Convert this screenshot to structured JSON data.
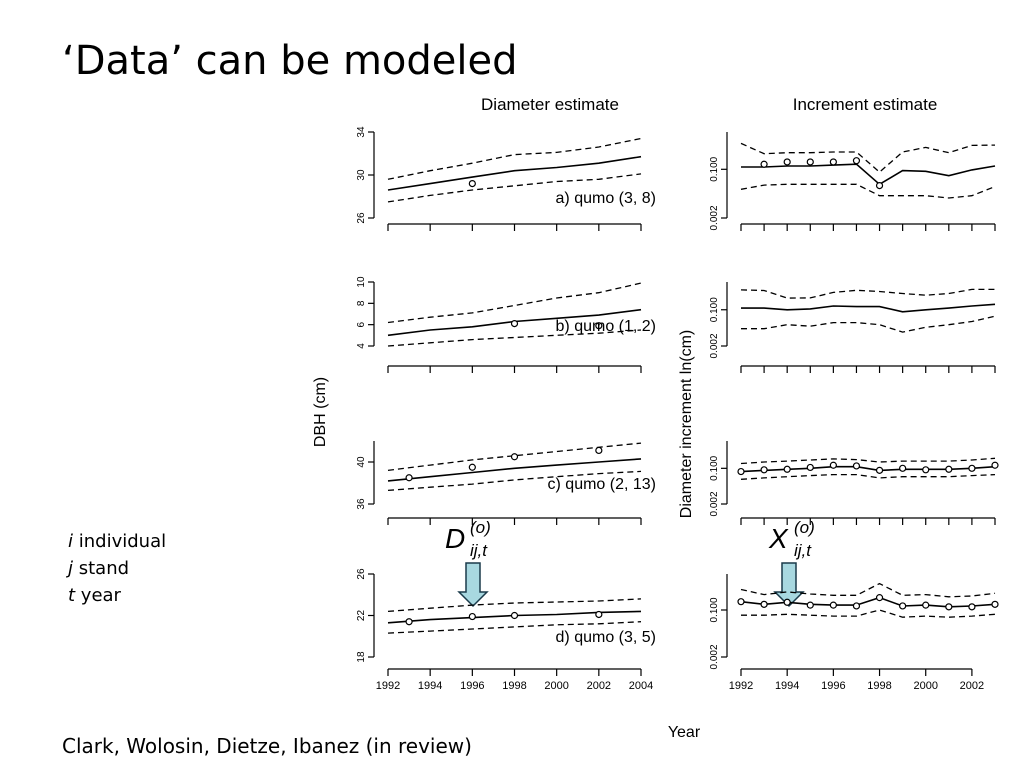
{
  "slide": {
    "title": "‘Data’ can be modeled",
    "notes": [
      {
        "letter": "i",
        "text": "individual"
      },
      {
        "letter": "j",
        "text": "stand"
      },
      {
        "letter": "t",
        "text": "year"
      }
    ],
    "citation": "Clark, Wolosin, Dietze, Ibanez (in review)"
  },
  "figure": {
    "left_title": "Diameter estimate",
    "right_title": "Increment estimate",
    "left_ylabel": "DBH (cm)",
    "right_ylabel": "Diameter increment ln(cm)",
    "xlabel": "Year",
    "diameter_symbol": {
      "base": "D",
      "sup": "(o)",
      "sub": "ij,t"
    },
    "increment_symbol": {
      "base": "X",
      "sup": "(o)",
      "sub": "ij,t"
    }
  },
  "chart_data": [
    {
      "type": "line",
      "column": "diameter",
      "row": 0,
      "panel_label": "a) qumo (3, 8)",
      "ylim": [
        26,
        34
      ],
      "yticks": [
        26,
        30,
        34
      ],
      "xlim": [
        1992,
        2004
      ],
      "show_xticklabels": false,
      "x": [
        1992,
        1994,
        1996,
        1998,
        2000,
        2002,
        2004
      ],
      "series": [
        {
          "name": "mean",
          "style": "solid",
          "values": [
            28.6,
            29.2,
            29.8,
            30.4,
            30.7,
            31.1,
            31.7
          ]
        },
        {
          "name": "upper",
          "style": "dashed",
          "values": [
            29.6,
            30.4,
            31.1,
            31.9,
            32.1,
            32.6,
            33.4
          ]
        },
        {
          "name": "lower",
          "style": "dashed",
          "values": [
            27.5,
            28.1,
            28.6,
            29.0,
            29.4,
            29.6,
            30.1
          ]
        }
      ],
      "observations": [
        {
          "x": 1996,
          "y": 29.2
        }
      ]
    },
    {
      "type": "line",
      "column": "diameter",
      "row": 1,
      "panel_label": "b) qumo (1, 2)",
      "ylim": [
        4,
        10
      ],
      "yticks": [
        4,
        6,
        8,
        10
      ],
      "xlim": [
        1992,
        2004
      ],
      "show_xticklabels": false,
      "x": [
        1992,
        1994,
        1996,
        1998,
        2000,
        2002,
        2004
      ],
      "series": [
        {
          "name": "mean",
          "style": "solid",
          "values": [
            5.0,
            5.5,
            5.8,
            6.3,
            6.6,
            6.9,
            7.4
          ]
        },
        {
          "name": "upper",
          "style": "dashed",
          "values": [
            6.2,
            6.7,
            7.1,
            7.8,
            8.5,
            9.0,
            9.9
          ]
        },
        {
          "name": "lower",
          "style": "dashed",
          "values": [
            4.0,
            4.3,
            4.6,
            4.8,
            5.0,
            5.2,
            5.5
          ]
        }
      ],
      "observations": [
        {
          "x": 1998,
          "y": 6.1
        },
        {
          "x": 2002,
          "y": 5.9
        }
      ]
    },
    {
      "type": "line",
      "column": "diameter",
      "row": 2,
      "panel_label": "c) qumo (2, 13)",
      "ylim": [
        36,
        42
      ],
      "yticks": [
        36,
        40
      ],
      "xlim": [
        1992,
        2004
      ],
      "show_xticklabels": false,
      "x": [
        1992,
        1994,
        1996,
        1998,
        2000,
        2002,
        2004
      ],
      "series": [
        {
          "name": "mean",
          "style": "solid",
          "values": [
            38.2,
            38.6,
            39.0,
            39.4,
            39.7,
            40.0,
            40.3
          ]
        },
        {
          "name": "upper",
          "style": "dashed",
          "values": [
            39.2,
            39.7,
            40.2,
            40.6,
            41.0,
            41.4,
            41.8
          ]
        },
        {
          "name": "lower",
          "style": "dashed",
          "values": [
            37.3,
            37.6,
            37.9,
            38.3,
            38.6,
            38.9,
            39.1
          ]
        }
      ],
      "observations": [
        {
          "x": 1993,
          "y": 38.5
        },
        {
          "x": 1996,
          "y": 39.5
        },
        {
          "x": 1998,
          "y": 40.5
        },
        {
          "x": 2002,
          "y": 41.1
        }
      ]
    },
    {
      "type": "line",
      "column": "diameter",
      "row": 3,
      "panel_label": "d) qumo (3, 5)",
      "ylim": [
        18,
        26
      ],
      "yticks": [
        18,
        22,
        26
      ],
      "xlim": [
        1992,
        2004
      ],
      "show_xticklabels": true,
      "x": [
        1992,
        1994,
        1996,
        1998,
        2000,
        2002,
        2004
      ],
      "xticks": [
        "1992",
        "1994",
        "1996",
        "1998",
        "2000",
        "2002",
        "2004"
      ],
      "series": [
        {
          "name": "mean",
          "style": "solid",
          "values": [
            21.3,
            21.6,
            21.8,
            22.0,
            22.1,
            22.3,
            22.4
          ]
        },
        {
          "name": "upper",
          "style": "dashed",
          "values": [
            22.4,
            22.7,
            23.0,
            23.2,
            23.3,
            23.4,
            23.6
          ]
        },
        {
          "name": "lower",
          "style": "dashed",
          "values": [
            20.3,
            20.5,
            20.7,
            20.9,
            21.1,
            21.2,
            21.4
          ]
        }
      ],
      "observations": [
        {
          "x": 1993,
          "y": 21.4
        },
        {
          "x": 1996,
          "y": 21.9
        },
        {
          "x": 1998,
          "y": 22.0
        },
        {
          "x": 2002,
          "y": 22.1
        }
      ]
    },
    {
      "type": "line",
      "column": "increment",
      "row": 0,
      "log_y": true,
      "ylim": [
        0.002,
        2.0
      ],
      "yticks": [
        0.002,
        0.1
      ],
      "ytick_labels": [
        "0.002",
        "0.100"
      ],
      "xlim": [
        1992,
        2003
      ],
      "show_xticklabels": false,
      "x": [
        1992,
        1993,
        1994,
        1995,
        1996,
        1997,
        1998,
        1999,
        2000,
        2001,
        2002,
        2003
      ],
      "series": [
        {
          "name": "mean",
          "style": "solid",
          "values": [
            0.12,
            0.12,
            0.13,
            0.13,
            0.14,
            0.15,
            0.03,
            0.09,
            0.085,
            0.06,
            0.095,
            0.13
          ]
        },
        {
          "name": "upper",
          "style": "dashed",
          "values": [
            0.8,
            0.35,
            0.38,
            0.38,
            0.4,
            0.4,
            0.08,
            0.4,
            0.58,
            0.38,
            0.68,
            0.7
          ]
        },
        {
          "name": "lower",
          "style": "dashed",
          "values": [
            0.02,
            0.028,
            0.03,
            0.03,
            0.03,
            0.03,
            0.012,
            0.012,
            0.012,
            0.01,
            0.012,
            0.025
          ]
        }
      ],
      "observations": [
        {
          "x": 1993,
          "y": 0.15
        },
        {
          "x": 1994,
          "y": 0.18
        },
        {
          "x": 1995,
          "y": 0.18
        },
        {
          "x": 1996,
          "y": 0.18
        },
        {
          "x": 1997,
          "y": 0.2
        },
        {
          "x": 1998,
          "y": 0.027
        }
      ]
    },
    {
      "type": "line",
      "column": "increment",
      "row": 1,
      "log_y": true,
      "ylim": [
        0.002,
        2.0
      ],
      "yticks": [
        0.002,
        0.1
      ],
      "ytick_labels": [
        "0.002",
        "0.100"
      ],
      "xlim": [
        1992,
        2003
      ],
      "show_xticklabels": false,
      "x": [
        1992,
        1993,
        1994,
        1995,
        1996,
        1997,
        1998,
        1999,
        2000,
        2001,
        2002,
        2003
      ],
      "series": [
        {
          "name": "mean",
          "style": "solid",
          "values": [
            0.12,
            0.12,
            0.1,
            0.11,
            0.15,
            0.14,
            0.14,
            0.08,
            0.1,
            0.12,
            0.15,
            0.18
          ]
        },
        {
          "name": "upper",
          "style": "dashed",
          "values": [
            0.85,
            0.8,
            0.35,
            0.36,
            0.65,
            0.82,
            0.72,
            0.58,
            0.48,
            0.58,
            0.9,
            0.9
          ]
        },
        {
          "name": "lower",
          "style": "dashed",
          "values": [
            0.013,
            0.013,
            0.02,
            0.017,
            0.025,
            0.025,
            0.02,
            0.009,
            0.015,
            0.02,
            0.028,
            0.05
          ]
        }
      ],
      "observations": []
    },
    {
      "type": "line",
      "column": "increment",
      "row": 2,
      "log_y": true,
      "ylim": [
        0.002,
        2.0
      ],
      "yticks": [
        0.002,
        0.1
      ],
      "ytick_labels": [
        "0.002",
        "0.100"
      ],
      "xlim": [
        1992,
        2003
      ],
      "show_xticklabels": false,
      "x": [
        1992,
        1993,
        1994,
        1995,
        1996,
        1997,
        1998,
        1999,
        2000,
        2001,
        2002,
        2003
      ],
      "series": [
        {
          "name": "mean",
          "style": "solid",
          "values": [
            0.07,
            0.08,
            0.09,
            0.1,
            0.12,
            0.12,
            0.08,
            0.09,
            0.09,
            0.09,
            0.1,
            0.12
          ]
        },
        {
          "name": "upper",
          "style": "dashed",
          "values": [
            0.17,
            0.2,
            0.22,
            0.25,
            0.28,
            0.26,
            0.2,
            0.22,
            0.22,
            0.22,
            0.25,
            0.3
          ]
        },
        {
          "name": "lower",
          "style": "dashed",
          "values": [
            0.03,
            0.035,
            0.04,
            0.045,
            0.05,
            0.05,
            0.035,
            0.04,
            0.04,
            0.04,
            0.045,
            0.05
          ]
        }
      ],
      "observations": [
        {
          "x": 1992,
          "y": 0.07
        },
        {
          "x": 1993,
          "y": 0.085
        },
        {
          "x": 1994,
          "y": 0.09
        },
        {
          "x": 1995,
          "y": 0.11
        },
        {
          "x": 1996,
          "y": 0.14
        },
        {
          "x": 1997,
          "y": 0.13
        },
        {
          "x": 1998,
          "y": 0.08
        },
        {
          "x": 1999,
          "y": 0.1
        },
        {
          "x": 2000,
          "y": 0.085
        },
        {
          "x": 2001,
          "y": 0.09
        },
        {
          "x": 2002,
          "y": 0.1
        },
        {
          "x": 2003,
          "y": 0.14
        }
      ]
    },
    {
      "type": "line",
      "column": "increment",
      "row": 3,
      "log_y": true,
      "ylim": [
        0.002,
        2.0
      ],
      "yticks": [
        0.002,
        0.1
      ],
      "ytick_labels": [
        "0.002",
        "0.100"
      ],
      "xlim": [
        1992,
        2003
      ],
      "show_xticklabels": true,
      "x": [
        1992,
        1993,
        1994,
        1995,
        1996,
        1997,
        1998,
        1999,
        2000,
        2001,
        2002,
        2003
      ],
      "xticks": [
        "1992",
        "1994",
        "1996",
        "1998",
        "2000",
        "2002"
      ],
      "xtick_values": [
        1992,
        1994,
        1996,
        1998,
        2000,
        2002
      ],
      "series": [
        {
          "name": "mean",
          "style": "solid",
          "values": [
            0.2,
            0.16,
            0.19,
            0.16,
            0.15,
            0.15,
            0.28,
            0.14,
            0.15,
            0.13,
            0.14,
            0.16
          ]
        },
        {
          "name": "upper",
          "style": "dashed",
          "values": [
            0.55,
            0.36,
            0.45,
            0.38,
            0.34,
            0.34,
            0.9,
            0.34,
            0.36,
            0.3,
            0.32,
            0.4
          ]
        },
        {
          "name": "lower",
          "style": "dashed",
          "values": [
            0.065,
            0.065,
            0.07,
            0.065,
            0.06,
            0.06,
            0.1,
            0.055,
            0.06,
            0.055,
            0.06,
            0.07
          ]
        }
      ],
      "observations": [
        {
          "x": 1992,
          "y": 0.2
        },
        {
          "x": 1993,
          "y": 0.16
        },
        {
          "x": 1994,
          "y": 0.19
        },
        {
          "x": 1995,
          "y": 0.15
        },
        {
          "x": 1996,
          "y": 0.15
        },
        {
          "x": 1997,
          "y": 0.14
        },
        {
          "x": 1998,
          "y": 0.28
        },
        {
          "x": 1999,
          "y": 0.14
        },
        {
          "x": 2000,
          "y": 0.15
        },
        {
          "x": 2001,
          "y": 0.13
        },
        {
          "x": 2002,
          "y": 0.13
        },
        {
          "x": 2003,
          "y": 0.16
        }
      ]
    }
  ]
}
